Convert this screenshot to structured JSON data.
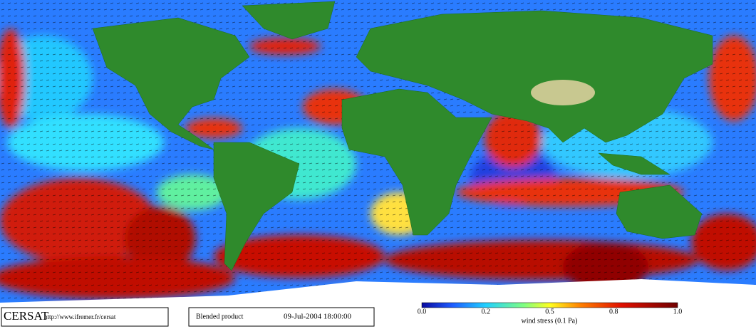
{
  "credit": {
    "name": "CERSAT",
    "url": "http://www.ifremer.fr/cersat"
  },
  "product": {
    "name": "Blended product",
    "date": "09-Jul-2004 18:00:00"
  },
  "colorbar": {
    "ticks": [
      "0.0",
      "0.2",
      "0.5",
      "0.8",
      "1.0"
    ],
    "label": "wind stress (0.1 Pa)"
  }
}
